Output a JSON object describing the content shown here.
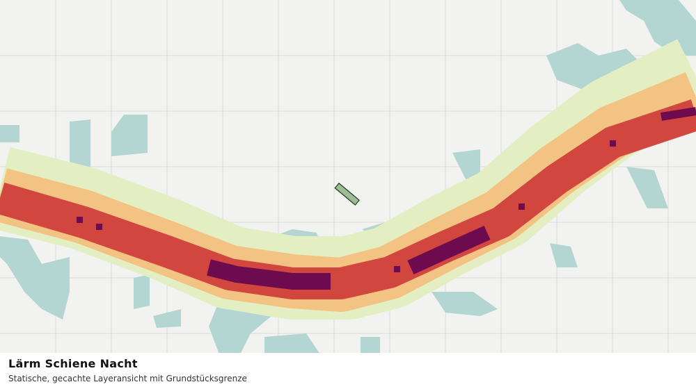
{
  "title": "Lärm Schiene Nacht",
  "subtitle": "Statische, gecachte Layeransicht mit Grundstücksgrenze"
}
